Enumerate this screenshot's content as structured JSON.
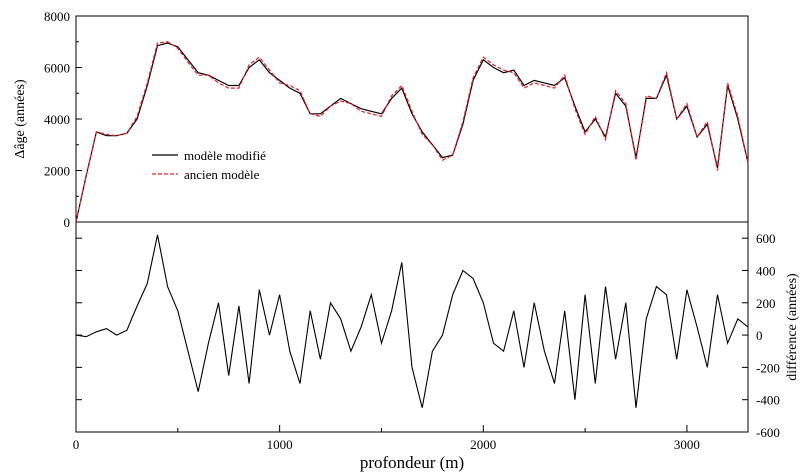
{
  "chart_data": [
    {
      "type": "line",
      "panel": "top",
      "ylabel": "Δâge (années)",
      "xlim": [
        0,
        3300
      ],
      "ylim": [
        0,
        8000
      ],
      "yticks": [
        "0",
        "2000",
        "4000",
        "6000",
        "8000"
      ],
      "legend": {
        "position": "middle-left"
      },
      "series": [
        {
          "name": "modèle modifié",
          "color": "#000000",
          "dash": "solid",
          "x": [
            0,
            50,
            100,
            150,
            200,
            250,
            300,
            350,
            400,
            450,
            500,
            550,
            600,
            650,
            700,
            750,
            800,
            850,
            900,
            950,
            1000,
            1050,
            1100,
            1150,
            1200,
            1250,
            1300,
            1350,
            1400,
            1450,
            1500,
            1550,
            1600,
            1650,
            1700,
            1750,
            1800,
            1850,
            1900,
            1950,
            2000,
            2050,
            2100,
            2150,
            2200,
            2250,
            2300,
            2350,
            2400,
            2450,
            2500,
            2550,
            2600,
            2650,
            2700,
            2750,
            2800,
            2850,
            2900,
            2950,
            3000,
            3050,
            3100,
            3150,
            3200,
            3250,
            3300
          ],
          "y": [
            0,
            1800,
            3500,
            3350,
            3350,
            3450,
            4000,
            5300,
            6850,
            6950,
            6800,
            6300,
            5800,
            5700,
            5500,
            5300,
            5300,
            6000,
            6300,
            5800,
            5500,
            5200,
            5000,
            4200,
            4200,
            4500,
            4800,
            4600,
            4400,
            4300,
            4200,
            4800,
            5200,
            4200,
            3500,
            3000,
            2500,
            2600,
            3800,
            5500,
            6300,
            6000,
            5800,
            5900,
            5300,
            5500,
            5400,
            5300,
            5600,
            4500,
            3500,
            4000,
            3300,
            5000,
            4500,
            2500,
            4800,
            4800,
            5700,
            4000,
            4500,
            3300,
            3800,
            2100,
            5300,
            4000,
            2300
          ]
        },
        {
          "name": "ancien modèle",
          "color": "#e8202a",
          "dash": "dashed",
          "x": [
            0,
            50,
            100,
            150,
            200,
            250,
            300,
            350,
            400,
            450,
            500,
            550,
            600,
            650,
            700,
            750,
            800,
            850,
            900,
            950,
            1000,
            1050,
            1100,
            1150,
            1200,
            1250,
            1300,
            1350,
            1400,
            1450,
            1500,
            1550,
            1600,
            1650,
            1700,
            1750,
            1800,
            1850,
            1900,
            1950,
            2000,
            2050,
            2100,
            2150,
            2200,
            2250,
            2300,
            2350,
            2400,
            2450,
            2500,
            2550,
            2600,
            2650,
            2700,
            2750,
            2800,
            2850,
            2900,
            2950,
            3000,
            3050,
            3100,
            3150,
            3200,
            3250,
            3300
          ],
          "y": [
            0,
            1800,
            3500,
            3400,
            3350,
            3450,
            4100,
            5400,
            6950,
            7000,
            6750,
            6200,
            5700,
            5700,
            5400,
            5200,
            5200,
            6100,
            6400,
            5900,
            5400,
            5300,
            5100,
            4200,
            4100,
            4500,
            4700,
            4600,
            4300,
            4200,
            4100,
            4900,
            5300,
            4300,
            3400,
            3000,
            2400,
            2600,
            3900,
            5600,
            6400,
            6100,
            5900,
            5800,
            5200,
            5400,
            5300,
            5200,
            5700,
            4400,
            3400,
            4100,
            3200,
            5100,
            4600,
            2400,
            4900,
            4800,
            5800,
            4000,
            4600,
            3300,
            3900,
            2000,
            5400,
            4100,
            2300
          ]
        }
      ]
    },
    {
      "type": "line",
      "panel": "bottom",
      "xlabel": "profondeur (m)",
      "ylabel": "différence (années)",
      "xlim": [
        0,
        3300
      ],
      "ylim": [
        -600,
        700
      ],
      "xticks": [
        "0",
        "1000",
        "2000",
        "3000"
      ],
      "yticks": [
        "-600",
        "-400",
        "-200",
        "0",
        "200",
        "400",
        "600"
      ],
      "series": [
        {
          "color": "#000000",
          "dash": "solid",
          "x": [
            0,
            50,
            100,
            150,
            200,
            250,
            300,
            350,
            400,
            450,
            500,
            550,
            600,
            650,
            700,
            750,
            800,
            850,
            900,
            950,
            1000,
            1050,
            1100,
            1150,
            1200,
            1250,
            1300,
            1350,
            1400,
            1450,
            1500,
            1550,
            1600,
            1650,
            1700,
            1750,
            1800,
            1850,
            1900,
            1950,
            2000,
            2050,
            2100,
            2150,
            2200,
            2250,
            2300,
            2350,
            2400,
            2450,
            2500,
            2550,
            2600,
            2650,
            2700,
            2750,
            2800,
            2850,
            2900,
            2950,
            3000,
            3050,
            3100,
            3150,
            3200,
            3250,
            3300
          ],
          "y": [
            0,
            -10,
            20,
            40,
            0,
            30,
            180,
            320,
            620,
            300,
            150,
            -100,
            -350,
            -50,
            200,
            -250,
            180,
            -300,
            280,
            0,
            250,
            -100,
            -300,
            150,
            -150,
            200,
            100,
            -100,
            50,
            250,
            -50,
            150,
            450,
            -200,
            -450,
            -100,
            0,
            250,
            400,
            350,
            200,
            -50,
            -100,
            150,
            -200,
            200,
            -100,
            -300,
            150,
            -400,
            250,
            -300,
            300,
            -150,
            200,
            -450,
            100,
            300,
            250,
            -150,
            280,
            50,
            -200,
            250,
            -50,
            100,
            50
          ]
        }
      ]
    }
  ]
}
